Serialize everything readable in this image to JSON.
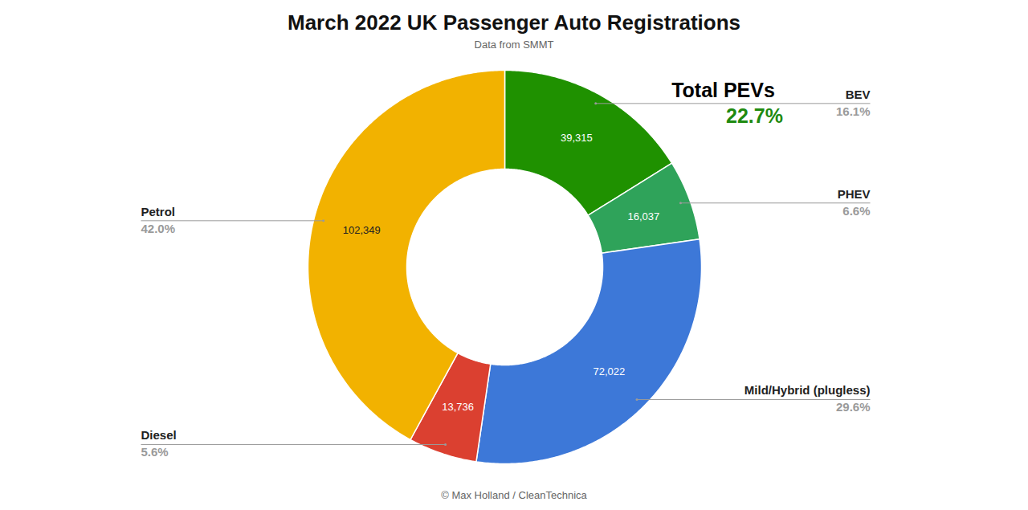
{
  "chart_data": {
    "type": "donut",
    "title": "March 2022 UK Passenger Auto Registrations",
    "subtitle": "Data from SMMT",
    "caption": "© Max Holland / CleanTechnica",
    "categories": [
      "BEV",
      "PHEV",
      "Mild/Hybrid (plugless)",
      "Diesel",
      "Petrol"
    ],
    "values": [
      39315,
      16037,
      72022,
      13736,
      102349
    ],
    "value_labels": [
      "39,315",
      "16,037",
      "72,022",
      "13,736",
      "102,349"
    ],
    "percentages": [
      16.1,
      6.6,
      29.6,
      5.6,
      42.0
    ],
    "percentage_labels": [
      "16.1%",
      "6.6%",
      "29.6%",
      "5.6%",
      "42.0%"
    ],
    "colors": [
      "#1f9100",
      "#2fa35a",
      "#3d78d8",
      "#db4030",
      "#f2b200"
    ],
    "data_labels": true,
    "annotations": [
      {
        "text": "Total PEVs",
        "value": 22.7,
        "label": "22.7%",
        "color": "#1e8a10"
      }
    ]
  }
}
